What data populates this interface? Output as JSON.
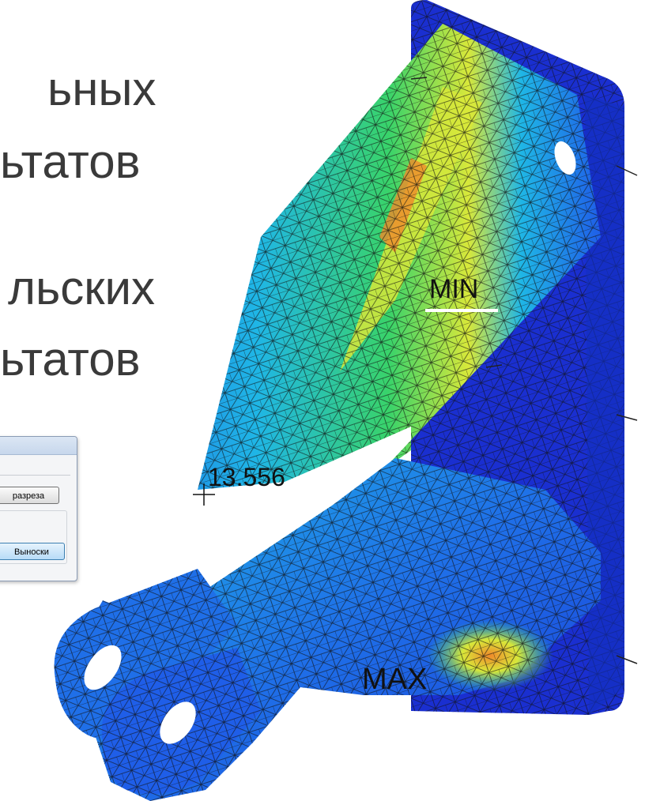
{
  "slide": {
    "lines": [
      "ьных",
      "ьтатов",
      "льских",
      "ьтатов"
    ]
  },
  "dialog": {
    "section_button_label": "разреза",
    "callout_button_label": "Выноски"
  },
  "model": {
    "min_label": "MIN",
    "max_label": "MAX",
    "probe_value": "13.556"
  },
  "colors": {
    "blue_dark": "#1a2fd0",
    "blue": "#1f5ee8",
    "cyan": "#1fb6e6",
    "green": "#39d36a",
    "yellow": "#d8e83a",
    "orange": "#f08a2a",
    "mesh": "#111111"
  }
}
